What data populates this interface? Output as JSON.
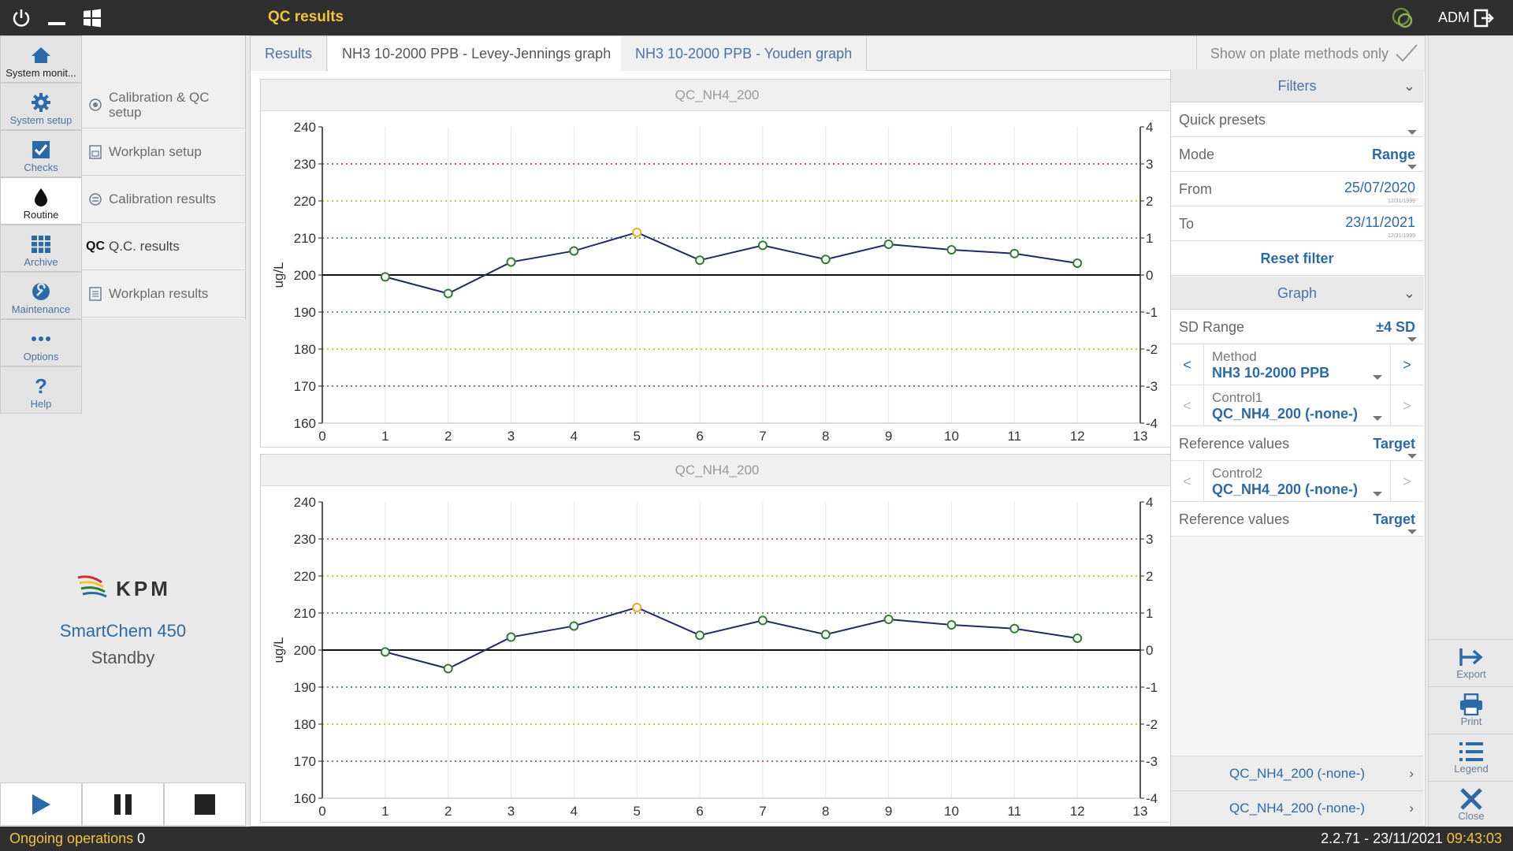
{
  "app": {
    "title": "QC results",
    "user": "ADM",
    "colors": {
      "accent": "#2b6aa8",
      "title_yellow": "#f2c437",
      "series": "#1f2a6b",
      "point": "#2e7d32",
      "outlier": "#f5a623"
    }
  },
  "nav": {
    "items": [
      {
        "label": "System monit...",
        "icon": "home-icon"
      },
      {
        "label": "System setup",
        "icon": "gear-icon"
      },
      {
        "label": "Checks",
        "icon": "checkbox-icon"
      },
      {
        "label": "Routine",
        "icon": "drop-icon"
      },
      {
        "label": "Archive",
        "icon": "grid-icon"
      },
      {
        "label": "Maintenance",
        "icon": "wrench-icon"
      },
      {
        "label": "Options",
        "icon": "dots-icon"
      },
      {
        "label": "Help",
        "icon": "question-icon"
      }
    ]
  },
  "subnav": {
    "items": [
      {
        "label": "Calibration & QC setup"
      },
      {
        "label": "Workplan setup"
      },
      {
        "label": "Calibration results"
      },
      {
        "label": "Q.C. results",
        "prefix": "QC"
      },
      {
        "label": "Workplan results"
      }
    ]
  },
  "brand": {
    "logo": "KPM",
    "product": "SmartChem 450",
    "state": "Standby"
  },
  "tabs": [
    {
      "label": "Results"
    },
    {
      "label": "NH3 10-2000 PPB - Levey-Jennings graph"
    },
    {
      "label": "NH3 10-2000 PPB - Youden graph"
    }
  ],
  "show_on_plate": "Show on plate methods only",
  "filters": {
    "header": "Filters",
    "quick_presets": "Quick presets",
    "mode_label": "Mode",
    "mode_value": "Range",
    "from_label": "From",
    "from_value": "25/07/2020",
    "to_label": "To",
    "to_value": "23/11/2021",
    "date_hint": "12/31/1999",
    "reset": "Reset filter"
  },
  "graph_panel": {
    "header": "Graph",
    "sd_range_label": "SD Range",
    "sd_range_value": "±4 SD",
    "method_label": "Method",
    "method_value": "NH3 10-2000 PPB",
    "control1_label": "Control1",
    "control1_value": "QC_NH4_200 (-none-)",
    "ref1_label": "Reference values",
    "ref1_value": "Target",
    "control2_label": "Control2",
    "control2_value": "QC_NH4_200 (-none-)",
    "ref2_label": "Reference values",
    "ref2_value": "Target",
    "prev": "<",
    "next": ">"
  },
  "legend_rows": [
    "QC_NH4_200 (-none-)",
    "QC_NH4_200 (-none-)"
  ],
  "actions": [
    {
      "label": "Export",
      "icon": "export-icon"
    },
    {
      "label": "Print",
      "icon": "print-icon"
    },
    {
      "label": "Legend",
      "icon": "list-icon"
    },
    {
      "label": "Close",
      "icon": "close-icon"
    }
  ],
  "status": {
    "ongoing_label": "Ongoing operations",
    "ongoing_count": "0",
    "version_date": "2.2.71 - 23/11/2021",
    "time": "09:43:03"
  },
  "chart_data": [
    {
      "type": "line",
      "title": "QC_NH4_200",
      "ylabel": "ug/L",
      "x": [
        1,
        2,
        3,
        4,
        5,
        6,
        7,
        8,
        9,
        10,
        11,
        12
      ],
      "values": [
        199.5,
        195,
        203.5,
        206.5,
        211.5,
        204,
        208,
        204.2,
        208.3,
        206.8,
        205.8,
        203.2
      ],
      "outliers": [
        5
      ],
      "xlim": [
        0,
        13
      ],
      "ylim": [
        160,
        240
      ],
      "xticks": [
        0,
        1,
        2,
        3,
        4,
        5,
        6,
        7,
        8,
        9,
        10,
        11,
        12,
        13
      ],
      "yticks": [
        160,
        170,
        180,
        190,
        200,
        210,
        220,
        230,
        240
      ],
      "sd_ticks": [
        -4,
        -3,
        -2,
        -1,
        0,
        1,
        2,
        3,
        4
      ],
      "target": 200,
      "sd": 10
    },
    {
      "type": "line",
      "title": "QC_NH4_200",
      "ylabel": "ug/L",
      "x": [
        1,
        2,
        3,
        4,
        5,
        6,
        7,
        8,
        9,
        10,
        11,
        12
      ],
      "values": [
        199.5,
        195,
        203.5,
        206.5,
        211.5,
        204,
        208,
        204.2,
        208.3,
        206.8,
        205.8,
        203.2
      ],
      "outliers": [
        5
      ],
      "xlim": [
        0,
        13
      ],
      "ylim": [
        160,
        240
      ],
      "xticks": [
        0,
        1,
        2,
        3,
        4,
        5,
        6,
        7,
        8,
        9,
        10,
        11,
        12,
        13
      ],
      "yticks": [
        160,
        170,
        180,
        190,
        200,
        210,
        220,
        230,
        240
      ],
      "sd_ticks": [
        -4,
        -3,
        -2,
        -1,
        0,
        1,
        2,
        3,
        4
      ],
      "target": 200,
      "sd": 10
    }
  ]
}
